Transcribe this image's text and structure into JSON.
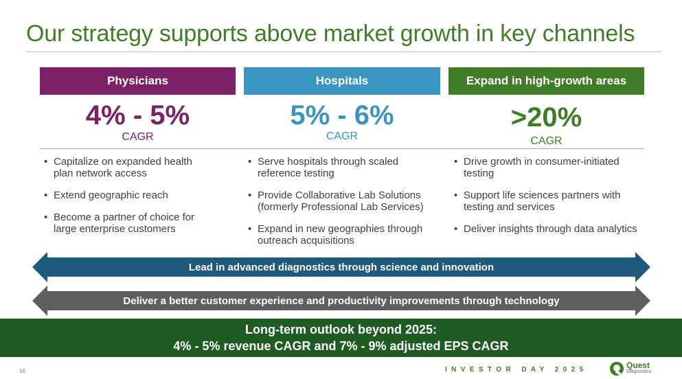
{
  "slide": {
    "title": "Our strategy supports above market growth in key channels",
    "page_number": "16",
    "event_label": "INVESTOR DAY 2025"
  },
  "logo": {
    "name": "Quest",
    "sub": "Diagnostics"
  },
  "columns": [
    {
      "header": "Physicians",
      "rate": "4% - 5%",
      "rate_label": "CAGR",
      "color": "#7b2168",
      "bullets": [
        "Capitalize on expanded health plan network access",
        "Extend geographic reach",
        "Become a partner of choice for large enterprise customers"
      ]
    },
    {
      "header": "Hospitals",
      "rate": "5% - 6%",
      "rate_label": "CAGR",
      "color": "#3a96c0",
      "bullets": [
        "Serve hospitals through scaled reference testing",
        "Provide Collaborative Lab Solutions (formerly Professional Lab Services)",
        "Expand in new geographies through outreach acquisitions"
      ]
    },
    {
      "header": "Expand in high-growth areas",
      "rate": ">20%",
      "rate_label": "CAGR",
      "color": "#3f7d26",
      "bullets": [
        "Drive growth in consumer-initiated testing",
        "Support life sciences partners with testing and services",
        "Deliver insights through data analytics"
      ]
    }
  ],
  "arrows": [
    {
      "text": "Lead in advanced diagnostics through science and innovation",
      "color": "#1d5a7c"
    },
    {
      "text": "Deliver a better customer experience and productivity improvements through technology",
      "color": "#5e5e5e"
    }
  ],
  "outlook": {
    "line1": "Long-term outlook beyond 2025:",
    "line2": "4% - 5% revenue CAGR and 7% - 9% adjusted EPS CAGR"
  }
}
